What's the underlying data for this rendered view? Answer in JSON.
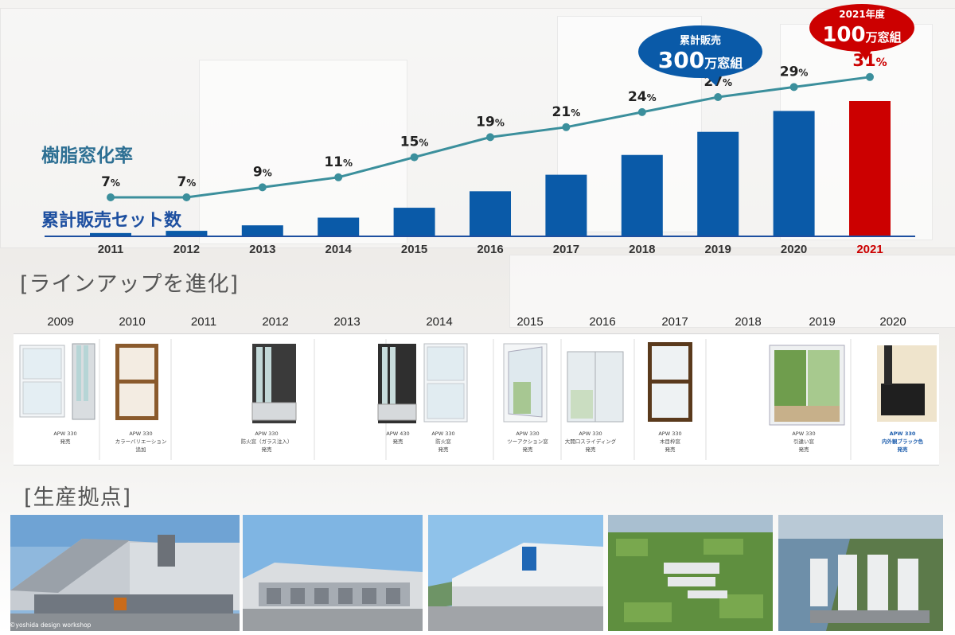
{
  "chart_data": {
    "type": "bar",
    "categories": [
      "2011",
      "2012",
      "2013",
      "2014",
      "2015",
      "2016",
      "2017",
      "2018",
      "2019",
      "2020",
      "2021"
    ],
    "series": [
      {
        "name": "累計販売セット数",
        "kind": "bar",
        "values": [
          3,
          5,
          10,
          17,
          26,
          41,
          56,
          74,
          95,
          114,
          123
        ]
      },
      {
        "name": "樹脂窓化率",
        "kind": "line",
        "values": [
          7,
          7,
          9,
          11,
          15,
          19,
          21,
          24,
          27,
          29,
          31
        ],
        "labels": [
          "7%",
          "7%",
          "9%",
          "11%",
          "15%",
          "19%",
          "21%",
          "24%",
          "27%",
          "29%",
          "31%"
        ]
      }
    ],
    "highlight_category": "2021",
    "colors": {
      "bar": "#0a5aa8",
      "bar_highlight": "#cc0000",
      "line": "#3b8f9c",
      "label": "#2d6f93",
      "axis": "#1d4fa0"
    },
    "callouts": [
      {
        "name": "cumulative-callout",
        "line1": "累計販売",
        "line2_num": "300",
        "line2_unit": "万窓組",
        "color": "#0a5aa8"
      },
      {
        "name": "fy2021-callout",
        "line1": "2021年度",
        "line2_num": "100",
        "line2_unit": "万窓組",
        "color": "#cc0000"
      }
    ]
  },
  "sections": {
    "lineup_title": "[ラインアップを進化]",
    "bases_title": "[生産拠点]"
  },
  "lineup_years": [
    "2009",
    "2010",
    "2011",
    "2012",
    "2013",
    "2014",
    "2015",
    "2016",
    "2017",
    "2018",
    "2019",
    "2020"
  ],
  "lineup_captions": [
    {
      "l1": "APW 330",
      "l2": "発売"
    },
    {
      "l1": "APW 330",
      "l2": "カラーバリエーション",
      "l3": "追加"
    },
    {
      "l1": "APW 330",
      "l2": "防火窓（ガラス注入）",
      "l3": "発売"
    },
    {
      "l1": "APW 430",
      "l2": "発売"
    },
    {
      "l1": "APW 330",
      "l2": "防火窓",
      "l3": "発売"
    },
    {
      "l1": "APW 330",
      "l2": "ツーアクション窓",
      "l3": "発売"
    },
    {
      "l1": "APW 330",
      "l2": "大開口スライディング",
      "l3": "発売"
    },
    {
      "l1": "APW 330",
      "l2": "木目枠窓",
      "l3": "発売"
    },
    {
      "l1": "APW 330",
      "l2": "引違い窓",
      "l3": "発売"
    },
    {
      "l1": "APW 330",
      "l2": "内外観ブラック色",
      "l3": "発売"
    }
  ],
  "photo_credit": "©yoshida design workshop"
}
